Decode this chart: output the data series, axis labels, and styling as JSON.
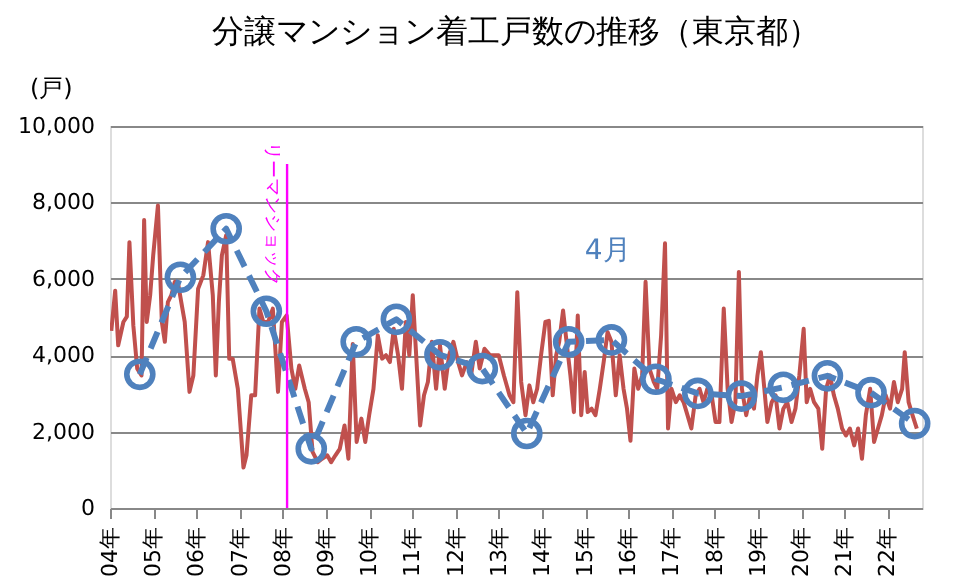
{
  "chart_data": {
    "type": "line",
    "title": "分譲マンション着工戸数の推移（東京都）",
    "ylabel": "(戸)",
    "xlim": [
      4,
      22.8
    ],
    "xticks": [
      {
        "value": 4,
        "label": "04年"
      },
      {
        "value": 5,
        "label": "05年"
      },
      {
        "value": 6,
        "label": "06年"
      },
      {
        "value": 7,
        "label": "07年"
      },
      {
        "value": 8,
        "label": "08年"
      },
      {
        "value": 9,
        "label": "09年"
      },
      {
        "value": 10,
        "label": "10年"
      },
      {
        "value": 11,
        "label": "11年"
      },
      {
        "value": 12,
        "label": "12年"
      },
      {
        "value": 13,
        "label": "13年"
      },
      {
        "value": 14,
        "label": "14年"
      },
      {
        "value": 15,
        "label": "15年"
      },
      {
        "value": 16,
        "label": "16年"
      },
      {
        "value": 17,
        "label": "17年"
      },
      {
        "value": 18,
        "label": "18年"
      },
      {
        "value": 19,
        "label": "19年"
      },
      {
        "value": 20,
        "label": "20年"
      },
      {
        "value": 21,
        "label": "21年"
      },
      {
        "value": 22,
        "label": "22年"
      }
    ],
    "ylim": [
      0,
      10000
    ],
    "yticks": [
      0,
      {
        "value": 2000,
        "label": "2,000"
      },
      {
        "value": 4000,
        "label": "4,000"
      },
      {
        "value": 6000,
        "label": "6,000"
      },
      {
        "value": 8000,
        "label": "8,000"
      },
      {
        "value": 10000,
        "label": "10,000"
      }
    ],
    "grid": "y",
    "ref_lines": [
      {
        "axis": "x",
        "value": 8.1,
        "label": "リーマンショック",
        "color": "#ff00ff"
      }
    ],
    "series": [
      {
        "type": "line",
        "color": "#c0504d",
        "x": [
          4.03,
          4.12,
          4.19,
          4.31,
          4.39,
          4.45,
          4.54,
          4.63,
          4.73,
          4.79,
          4.85,
          4.93,
          5.0,
          5.11,
          5.2,
          5.27,
          5.34,
          5.42,
          5.5,
          5.57,
          5.65,
          5.73,
          5.84,
          5.93,
          6.04,
          6.16,
          6.27,
          6.38,
          6.45,
          6.52,
          6.59,
          6.69,
          6.76,
          6.84,
          6.96,
          7.09,
          7.16,
          7.27,
          7.36,
          7.46,
          7.55,
          7.66,
          7.77,
          7.89,
          7.98,
          8.09,
          8.2,
          8.29,
          8.38,
          8.51,
          8.6,
          8.69,
          8.81,
          8.91,
          9.03,
          9.12,
          9.22,
          9.32,
          9.43,
          9.52,
          9.62,
          9.71,
          9.82,
          9.91,
          10.0,
          10.1,
          10.2,
          10.3,
          10.39,
          10.48,
          10.57,
          10.67,
          10.76,
          10.85,
          10.93,
          11.01,
          11.08,
          11.18,
          11.27,
          11.36,
          11.45,
          11.55,
          11.64,
          11.75,
          11.85,
          11.95,
          12.06,
          12.15,
          12.26,
          12.36,
          12.47,
          12.56,
          12.67,
          12.8,
          13.0,
          13.12,
          13.25,
          13.34,
          13.43,
          13.52,
          13.62,
          13.71,
          13.8,
          13.89,
          13.98,
          14.08,
          14.16,
          14.25,
          14.33,
          14.4,
          14.49,
          14.57,
          14.66,
          14.74,
          14.83,
          14.91,
          14.99,
          15.06,
          15.15,
          15.24,
          15.34,
          15.43,
          15.52,
          15.61,
          15.71,
          15.8,
          15.89,
          15.97,
          16.05,
          16.14,
          16.23,
          16.32,
          16.4,
          16.49,
          16.59,
          16.67,
          16.76,
          16.85,
          16.92,
          17.0,
          17.1,
          17.19,
          17.28,
          17.37,
          17.46,
          17.56,
          17.65,
          17.74,
          17.83,
          17.93,
          18.02,
          18.11,
          18.21,
          18.3,
          18.39,
          18.48,
          18.56,
          18.63,
          18.73,
          18.82,
          18.91,
          18.99,
          19.07,
          19.15,
          19.22,
          19.32,
          19.41,
          19.5,
          19.59,
          19.68,
          19.78,
          19.87,
          19.96,
          20.06,
          20.13,
          20.21,
          20.3,
          20.4,
          20.49,
          20.58,
          20.67,
          20.76,
          20.85,
          20.95,
          21.04,
          21.13,
          21.23,
          21.32,
          21.41,
          21.5,
          21.6,
          21.69,
          21.78,
          21.87,
          21.96,
          22.06,
          22.15,
          22.24,
          22.34,
          22.4,
          22.49,
          22.58,
          22.68
        ],
        "values": [
          4640,
          5690,
          4260,
          4870,
          5010,
          6960,
          4780,
          3650,
          3470,
          7540,
          4870,
          5570,
          6610,
          7920,
          4870,
          4350,
          5390,
          5570,
          5920,
          5920,
          5390,
          4870,
          3040,
          3470,
          5740,
          6090,
          6960,
          5570,
          3470,
          5390,
          6610,
          7140,
          3910,
          3910,
          3120,
          1060,
          1380,
          2950,
          2950,
          5220,
          4870,
          4870,
          5220,
          3040,
          4870,
          5040,
          3650,
          3120,
          3730,
          3120,
          2770,
          1470,
          1200,
          1290,
          1380,
          1200,
          1380,
          1550,
          2160,
          1290,
          4290,
          1730,
          2340,
          1730,
          2430,
          3120,
          4520,
          3910,
          4000,
          3820,
          4690,
          4000,
          3120,
          4870,
          4000,
          5570,
          4170,
          2160,
          2950,
          3300,
          4350,
          3120,
          4260,
          3120,
          4000,
          4350,
          3820,
          3470,
          3820,
          3470,
          4350,
          3650,
          4170,
          4000,
          4000,
          3470,
          2950,
          2770,
          5650,
          3300,
          2430,
          3210,
          2770,
          3120,
          4000,
          4870,
          4900,
          2950,
          4000,
          4350,
          5170,
          4350,
          3470,
          2510,
          5040,
          2430,
          3560,
          2510,
          2600,
          2430,
          3120,
          3820,
          4610,
          4350,
          2950,
          4000,
          3120,
          2600,
          1760,
          3650,
          3120,
          3470,
          5920,
          3650,
          3300,
          3120,
          4520,
          6930,
          2080,
          3120,
          2770,
          2950,
          2770,
          2430,
          2080,
          2950,
          3120,
          2770,
          3120,
          2950,
          2250,
          2250,
          5220,
          3120,
          2250,
          2770,
          6180,
          3120,
          2430,
          2950,
          2600,
          3470,
          4080,
          3120,
          2250,
          2770,
          2950,
          2080,
          2600,
          2770,
          2250,
          2600,
          3470,
          4690,
          2770,
          3120,
          2770,
          2600,
          1550,
          3120,
          3470,
          2950,
          2600,
          2080,
          1900,
          2080,
          1640,
          2080,
          1290,
          2430,
          3120,
          1730,
          2080,
          2430,
          2950,
          2600,
          3300,
          2770,
          3120,
          4080,
          2770,
          2430,
          2080
        ]
      },
      {
        "type": "line",
        "name": "4月",
        "color": "#4f81bd",
        "marker": "circle",
        "line_style": "dashed",
        "x": [
          4.69,
          5.63,
          6.69,
          7.62,
          8.66,
          9.7,
          10.63,
          11.64,
          12.62,
          13.65,
          14.62,
          15.61,
          16.64,
          17.61,
          18.62,
          19.59,
          20.61,
          21.62,
          22.63
        ],
        "values": [
          3500,
          6040,
          7310,
          5150,
          1550,
          4350,
          4940,
          4010,
          3650,
          1950,
          4350,
          4400,
          3370,
          3000,
          2930,
          3160,
          3460,
          3020,
          2210
        ]
      }
    ]
  }
}
